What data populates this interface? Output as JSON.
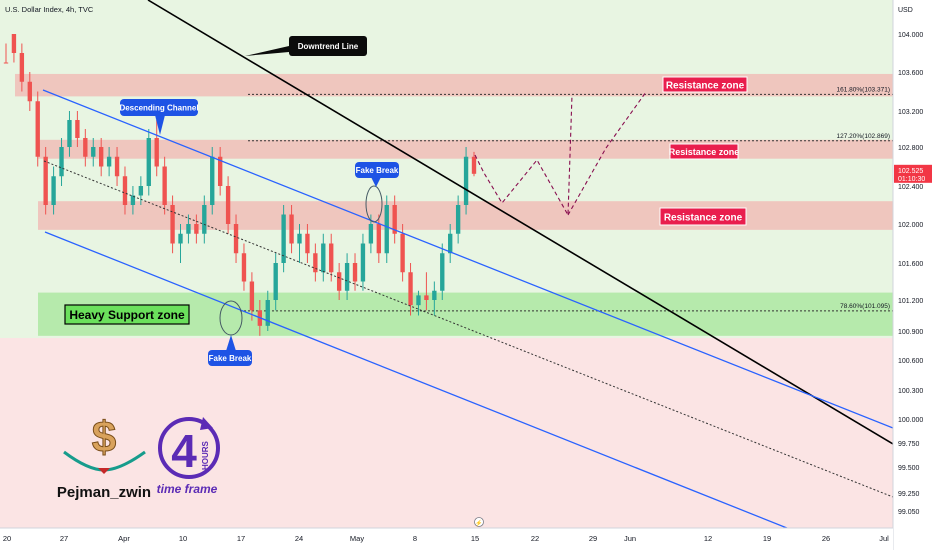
{
  "header": {
    "title": "U.S. Dollar Index, 4h, TVC"
  },
  "axis": {
    "currency": "USD"
  },
  "price_badge": {
    "price": "102.525",
    "countdown": "01:10:30",
    "color": "#f23645"
  },
  "labels": {
    "downtrend": "Downtrend Line",
    "channel": "Descending Channel",
    "fake_break_1": "Fake Break",
    "fake_break_2": "Fake Break",
    "resistance_1": "Resistance zone",
    "resistance_2": "Resistance zone",
    "resistance_3": "Resistance zone",
    "support": "Heavy Support zone",
    "fib_1618": "161.80%(103.371)",
    "fib_1272": "127.20%(102.869)",
    "fib_786": "78.60%(101.095)"
  },
  "branding": {
    "author": "Pejman_zwin",
    "logo_number": "4",
    "logo_word": "HOURS",
    "logo_caption": "time frame"
  },
  "colors": {
    "up": "#26a69a",
    "down": "#ef5350",
    "channel": "#2962ff",
    "downtrend": "#000000",
    "projection": "#880e4f",
    "resistance_fill": "#f4a6a6",
    "support_fill": "#a5e59a",
    "label_red": "#e91e4d"
  },
  "chart_data": {
    "type": "candlestick",
    "title": "U.S. Dollar Index, 4h, TVC",
    "y_unit": "USD",
    "y_range": [
      98.9,
      104.4
    ],
    "y_ticks": [
      "104.000",
      "103.600",
      "103.200",
      "102.800",
      "102.400",
      "102.000",
      "101.600",
      "101.200",
      "100.900",
      "100.600",
      "100.300",
      "100.000",
      "99.750",
      "99.500",
      "99.250",
      "99.050"
    ],
    "x_ticks": [
      "20",
      "27",
      "Apr",
      "10",
      "17",
      "24",
      "May",
      "8",
      "15",
      "22",
      "29",
      "Jun",
      "12",
      "19",
      "26",
      "Jul"
    ],
    "last_price": 102.525,
    "zones": [
      {
        "name": "Resistance zone",
        "from": 103.35,
        "to": 103.58
      },
      {
        "name": "Resistance zone",
        "from": 102.68,
        "to": 102.88
      },
      {
        "name": "Resistance zone",
        "from": 101.94,
        "to": 102.24
      },
      {
        "name": "Heavy Support zone",
        "from": 100.85,
        "to": 101.28
      }
    ],
    "fib_levels": [
      {
        "label": "161.80%",
        "value": 103.371
      },
      {
        "label": "127.20%",
        "value": 102.869
      },
      {
        "label": "78.60%",
        "value": 101.095
      }
    ],
    "candles": [
      [
        104.3,
        104.3,
        103.9,
        104.0
      ],
      [
        104.0,
        104.1,
        103.7,
        103.8
      ],
      [
        103.8,
        103.9,
        103.4,
        103.5
      ],
      [
        103.5,
        103.6,
        103.2,
        103.3
      ],
      [
        103.3,
        103.4,
        102.6,
        102.7
      ],
      [
        102.7,
        102.8,
        102.1,
        102.2
      ],
      [
        102.2,
        102.6,
        102.1,
        102.5
      ],
      [
        102.5,
        102.9,
        102.4,
        102.8
      ],
      [
        102.8,
        103.2,
        102.7,
        103.1
      ],
      [
        103.1,
        103.2,
        102.8,
        102.9
      ],
      [
        102.9,
        103.0,
        102.6,
        102.7
      ],
      [
        102.7,
        102.9,
        102.6,
        102.8
      ],
      [
        102.8,
        102.9,
        102.5,
        102.6
      ],
      [
        102.6,
        102.8,
        102.5,
        102.7
      ],
      [
        102.7,
        102.8,
        102.4,
        102.5
      ],
      [
        102.5,
        102.6,
        102.1,
        102.2
      ],
      [
        102.2,
        102.4,
        102.1,
        102.3
      ],
      [
        102.3,
        102.5,
        102.2,
        102.4
      ],
      [
        102.4,
        103.0,
        102.3,
        102.9
      ],
      [
        102.9,
        103.1,
        102.5,
        102.6
      ],
      [
        102.6,
        102.7,
        102.1,
        102.2
      ],
      [
        102.2,
        102.3,
        101.7,
        101.8
      ],
      [
        101.8,
        102.0,
        101.6,
        101.9
      ],
      [
        101.9,
        102.1,
        101.8,
        102.0
      ],
      [
        102.0,
        102.1,
        101.8,
        101.9
      ],
      [
        101.9,
        102.3,
        101.8,
        102.2
      ],
      [
        102.2,
        102.8,
        102.1,
        102.7
      ],
      [
        102.7,
        102.8,
        102.3,
        102.4
      ],
      [
        102.4,
        102.5,
        101.9,
        102.0
      ],
      [
        102.0,
        102.1,
        101.6,
        101.7
      ],
      [
        101.7,
        101.8,
        101.3,
        101.4
      ],
      [
        101.4,
        101.5,
        101.0,
        101.1
      ],
      [
        101.1,
        101.2,
        100.85,
        100.95
      ],
      [
        100.95,
        101.3,
        100.9,
        101.2
      ],
      [
        101.2,
        101.7,
        101.1,
        101.6
      ],
      [
        101.6,
        102.2,
        101.5,
        102.1
      ],
      [
        102.1,
        102.2,
        101.7,
        101.8
      ],
      [
        101.8,
        102.0,
        101.6,
        101.9
      ],
      [
        101.9,
        102.0,
        101.6,
        101.7
      ],
      [
        101.7,
        101.8,
        101.4,
        101.5
      ],
      [
        101.5,
        101.9,
        101.4,
        101.8
      ],
      [
        101.8,
        101.9,
        101.4,
        101.5
      ],
      [
        101.5,
        101.6,
        101.2,
        101.3
      ],
      [
        101.3,
        101.7,
        101.2,
        101.6
      ],
      [
        101.6,
        101.7,
        101.3,
        101.4
      ],
      [
        101.4,
        101.9,
        101.3,
        101.8
      ],
      [
        101.8,
        102.1,
        101.7,
        102.0
      ],
      [
        102.0,
        102.1,
        101.6,
        101.7
      ],
      [
        101.7,
        102.3,
        101.6,
        102.2
      ],
      [
        102.2,
        102.3,
        101.8,
        101.9
      ],
      [
        101.9,
        102.0,
        101.4,
        101.5
      ],
      [
        101.5,
        101.6,
        101.05,
        101.15
      ],
      [
        101.15,
        101.3,
        101.05,
        101.25
      ],
      [
        101.25,
        101.5,
        101.1,
        101.2
      ],
      [
        101.2,
        101.4,
        101.05,
        101.3
      ],
      [
        101.3,
        101.8,
        101.2,
        101.7
      ],
      [
        101.7,
        102.0,
        101.6,
        101.9
      ],
      [
        101.9,
        102.3,
        101.8,
        102.2
      ],
      [
        102.2,
        102.8,
        102.1,
        102.7
      ],
      [
        102.7,
        102.75,
        102.5,
        102.525
      ]
    ]
  }
}
